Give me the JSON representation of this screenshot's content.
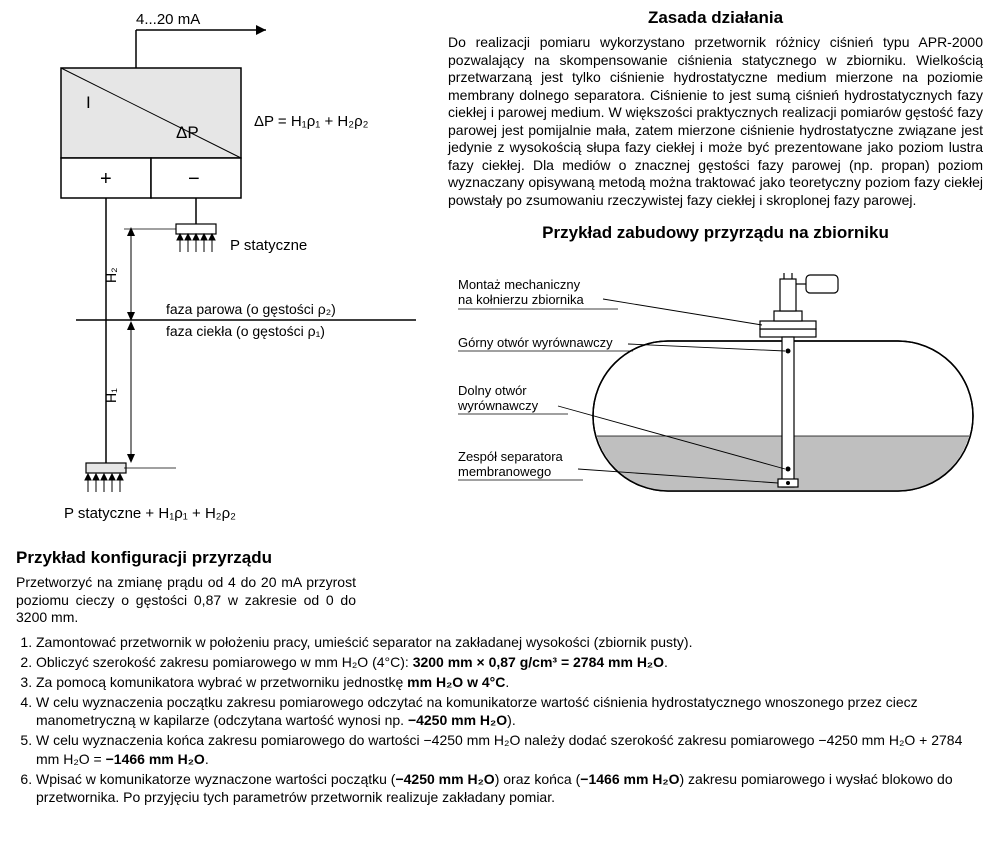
{
  "diagram": {
    "current_label": "4...20 mA",
    "box_I": "I",
    "box_dP": "ΔP",
    "formula": "ΔP = H₁ρ₁ + H₂ρ₂",
    "plus": "+",
    "minus": "−",
    "p_stat": "P statyczne",
    "H2": "H₂",
    "H1": "H₁",
    "vapor_phase": "faza parowa (o gęstości ρ₂)",
    "liquid_phase": "faza ciekła (o gęstości ρ₁)",
    "bottom_formula": "P statyczne + H₁ρ₁ + H₂ρ₂"
  },
  "principle": {
    "title": "Zasada działania",
    "text": "Do realizacji pomiaru wykorzystano przetwornik różnicy ciśnień typu APR-2000 pozwalający na skompensowanie ciśnienia statycznego w zbiorniku. Wielkością przetwarzaną jest tylko ciśnienie hydrostatyczne medium mierzone na poziomie membrany dolnego separatora. Ciśnienie to jest sumą ciśnień hydrostatycznych fazy ciekłej i parowej medium. W większości praktycznych realizacji pomiarów gęstość fazy parowej jest pomijalnie mała, zatem mierzone ciśnienie hydrostatyczne związane jest jedynie z wysokością słupa fazy ciekłej i może być prezentowane jako poziom lustra fazy ciekłej. Dla mediów o znacznej gęstości fazy parowej (np. propan) poziom wyznaczany opisywaną metodą można traktować jako teoretyczny poziom fazy ciekłej powstały po zsumowaniu rzeczywistej fazy ciekłej i skroplonej fazy parowej."
  },
  "mounting": {
    "title": "Przykład zabudowy przyrządu na zbiorniku",
    "label1a": "Montaż mechaniczny",
    "label1b": "na kołnierzu zbiornika",
    "label2": "Górny otwór wyrównawczy",
    "label3a": "Dolny otwór",
    "label3b": "wyrównawczy",
    "label4a": "Zespół separatora",
    "label4b": "membranowego"
  },
  "config": {
    "title": "Przykład konfiguracji przyrządu",
    "intro": "Przetworzyć na zmianę prądu od 4 do 20 mA przyrost poziomu cieczy o gęstości 0,87 w zakresie od 0 do 3200 mm.",
    "steps": [
      "Zamontować przetwornik w położeniu pracy, umieścić separator na zakładanej wysokości (zbiornik pusty).",
      "Obliczyć szerokość zakresu pomiarowego w mm H₂O (4°C):  <b>3200 mm × 0,87 g/cm³ = 2784 mm H₂O</b>.",
      "Za pomocą komunikatora wybrać w przetworniku jednostkę <b>mm H₂O w 4°C</b>.",
      "W celu wyznaczenia początku zakresu pomiarowego odczytać na komunikatorze wartość ciśnienia hydrostatycznego wnoszonego przez ciecz manometryczną w kapilarze (odczytana wartość wynosi np. <b>−4250 mm H₂O</b>).",
      "W celu wyznaczenia końca zakresu pomiarowego do wartości −4250 mm H₂O należy dodać szerokość zakresu pomiarowego −4250 mm H₂O + 2784 mm H₂O = <b>−1466 mm H₂O</b>.",
      "Wpisać w komunikatorze wyznaczone wartości początku (<b>−4250 mm H₂O</b>) oraz końca (<b>−1466 mm H₂O</b>) zakresu pomiarowego i wysłać blokowo do przetwornika. Po przyjęciu tych parametrów przetwornik realizuje zakładany pomiar."
    ]
  },
  "colors": {
    "box_fill": "#e6e6e6",
    "liquid_fill": "#bfbfbf",
    "stroke": "#000000"
  }
}
